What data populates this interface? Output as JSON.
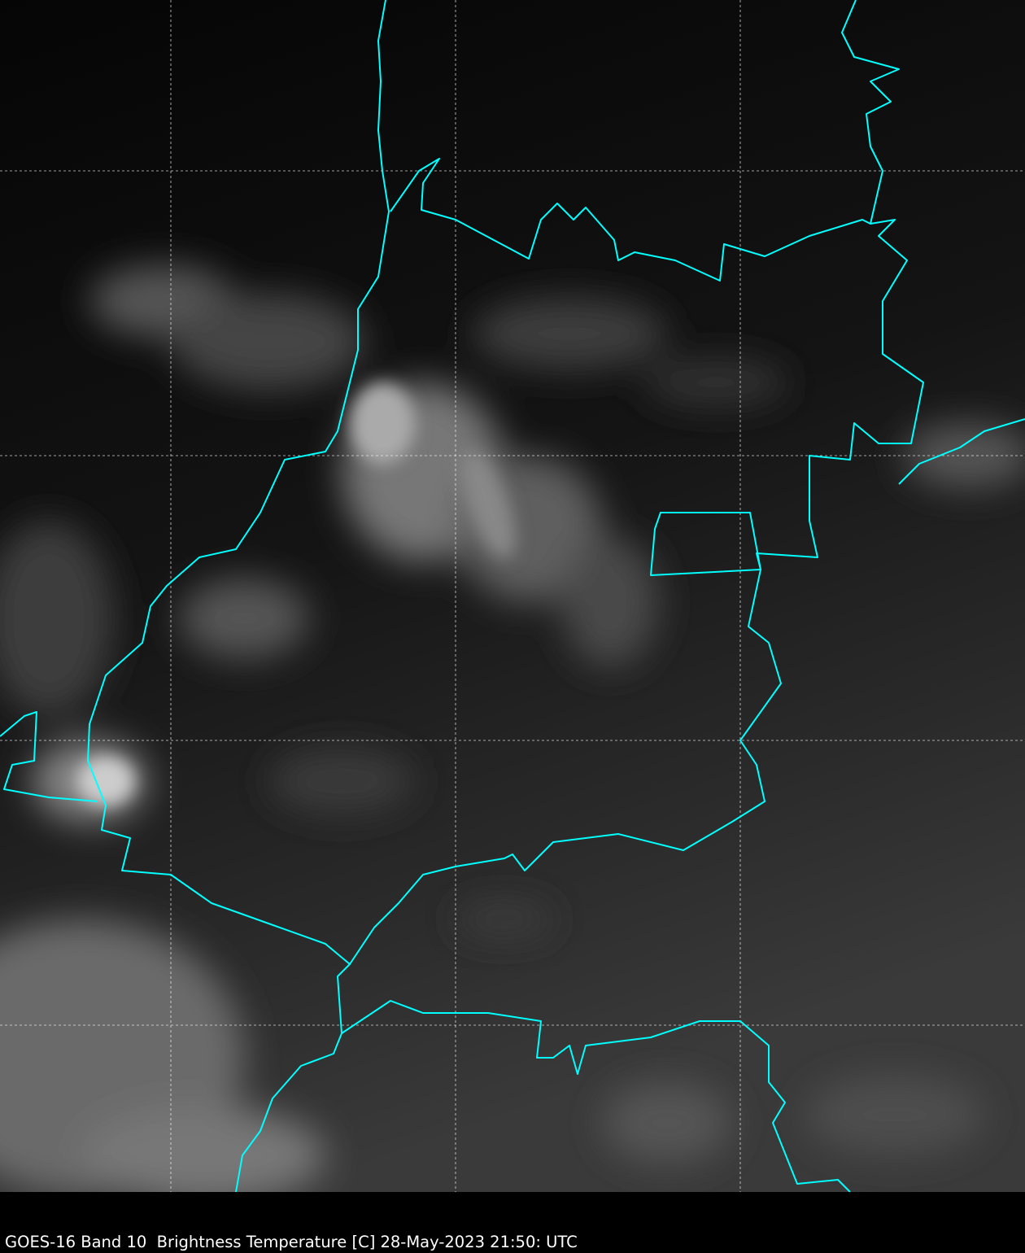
{
  "caption": "GOES-16 Band 10  Brightness Temperature [C] 28-May-2023 21:50: UTC",
  "colors": {
    "border": "#00ffff",
    "grid": "#ffffff",
    "background": "#000000"
  },
  "map": {
    "type": "satellite-infrared-image",
    "colormap": "grayscale",
    "gridlines": "dashed"
  }
}
